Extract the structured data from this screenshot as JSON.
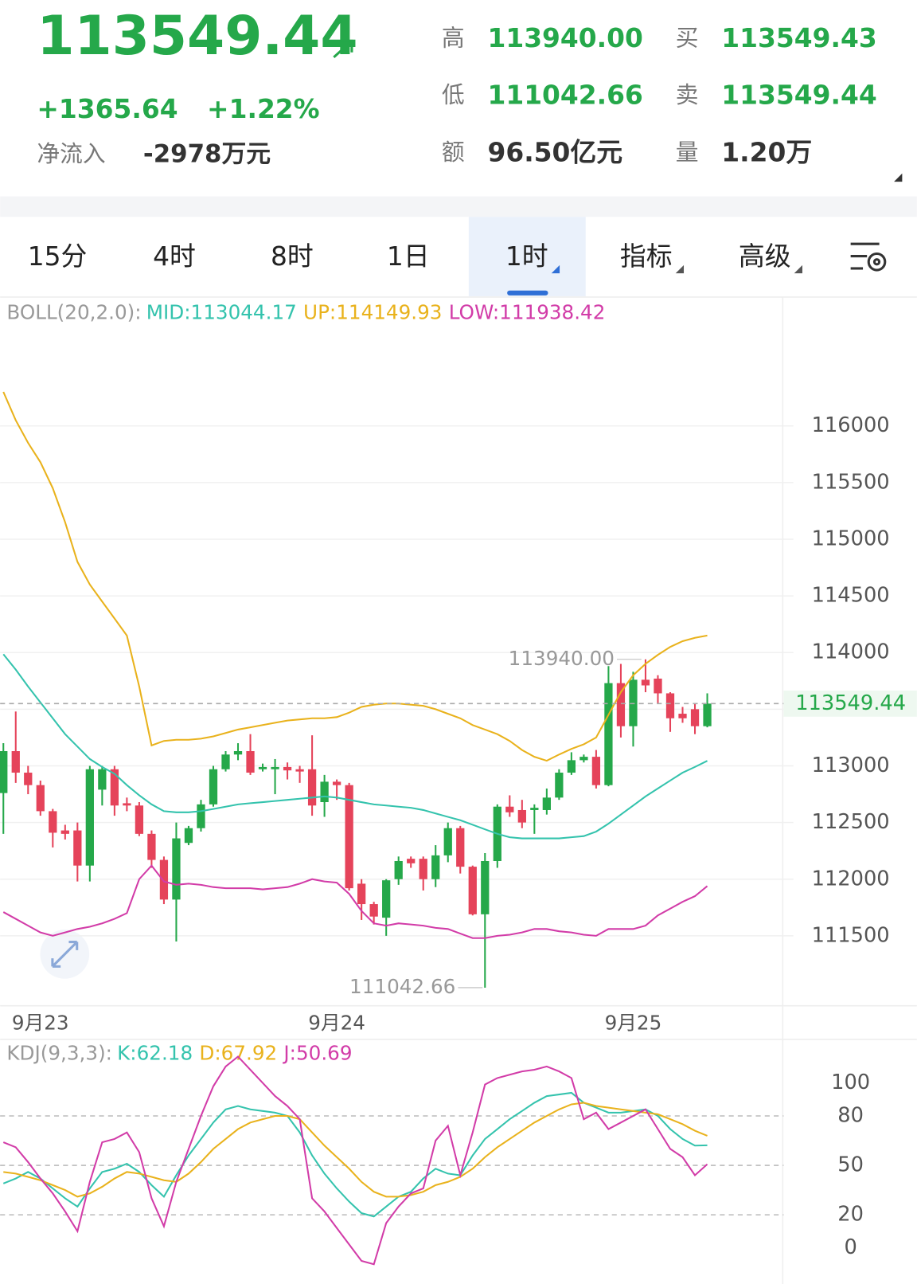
{
  "header": {
    "price": "113549.44",
    "change": "+1365.64",
    "change_pct": "+1.22%",
    "net_inflow_label": "净流入",
    "net_inflow": "-2978万元",
    "stats": [
      {
        "label": "高",
        "value": "113940.00"
      },
      {
        "label": "低",
        "value": "111042.66"
      },
      {
        "label": "额",
        "value": "96.50亿元"
      },
      {
        "label": "买",
        "value": "113549.43"
      },
      {
        "label": "卖",
        "value": "113549.44"
      },
      {
        "label": "量",
        "value": "1.20万"
      }
    ]
  },
  "tabs": {
    "items": [
      "15分",
      "4时",
      "8时",
      "1日",
      "1时",
      "指标",
      "高级"
    ],
    "active": 4
  },
  "chart_data": [
    {
      "type": "candlestick",
      "indicator": "BOLL(20,2.0):",
      "categories": [
        null,
        null,
        null,
        "9月23",
        null,
        null,
        null,
        null,
        null,
        null,
        null,
        null,
        null,
        null,
        null,
        null,
        null,
        null,
        null,
        null,
        null,
        null,
        null,
        null,
        null,
        null,
        null,
        "9月24",
        null,
        null,
        null,
        null,
        null,
        null,
        null,
        null,
        null,
        null,
        null,
        null,
        null,
        null,
        null,
        null,
        null,
        null,
        null,
        null,
        null,
        null,
        null,
        "9月25",
        null,
        null,
        null,
        null,
        null,
        null
      ],
      "up_color": "#25a84a",
      "down_color": "#e5435a",
      "open": [
        112760,
        113130,
        112940,
        112830,
        112600,
        112430,
        112430,
        112120,
        112790,
        112970,
        112670,
        112650,
        112400,
        112170,
        111820,
        112320,
        112450,
        112660,
        112970,
        113100,
        113130,
        112970,
        112970,
        112990,
        112970,
        112970,
        112680,
        112860,
        112830,
        111960,
        111780,
        111660,
        112000,
        112180,
        112180,
        112000,
        112210,
        112450,
        112110,
        111690,
        112160,
        112640,
        112610,
        112610,
        112610,
        112720,
        112940,
        113050,
        113080,
        112830,
        113730,
        113350,
        113760,
        113770,
        113640,
        113460,
        113500,
        113350
      ],
      "high": [
        113200,
        113480,
        113000,
        112870,
        112620,
        112480,
        112500,
        113000,
        113000,
        113000,
        112720,
        112680,
        112430,
        112200,
        112500,
        112470,
        112700,
        113000,
        113130,
        113200,
        113280,
        113020,
        113060,
        113030,
        113000,
        113270,
        112920,
        112880,
        112850,
        112000,
        111800,
        112000,
        112200,
        112200,
        112200,
        112300,
        112500,
        112470,
        112120,
        112230,
        112660,
        112740,
        112700,
        112660,
        112800,
        112970,
        113120,
        113100,
        113140,
        113880,
        113900,
        113830,
        113940,
        113800,
        113650,
        113520,
        113550,
        113640
      ],
      "low": [
        112400,
        112850,
        112750,
        112560,
        112280,
        112350,
        111980,
        111980,
        112650,
        112560,
        112600,
        112380,
        112100,
        111780,
        111450,
        112300,
        112420,
        112640,
        112950,
        113050,
        112920,
        112950,
        112750,
        112880,
        112850,
        112560,
        112550,
        112700,
        111900,
        111640,
        111600,
        111500,
        111950,
        112100,
        111900,
        111930,
        112150,
        112050,
        111680,
        111042.66,
        112100,
        112550,
        112450,
        112400,
        112570,
        112700,
        112920,
        113030,
        112800,
        112820,
        113250,
        113170,
        113650,
        113550,
        113300,
        113380,
        113280,
        113340
      ],
      "close": [
        113130,
        112940,
        112830,
        112600,
        112410,
        112400,
        112120,
        112970,
        112970,
        112650,
        112650,
        112400,
        112170,
        111820,
        112360,
        112450,
        112660,
        112970,
        113100,
        113130,
        112940,
        112990,
        112990,
        112960,
        112950,
        112650,
        112860,
        112830,
        111920,
        111780,
        111670,
        111990,
        112160,
        112140,
        112000,
        112210,
        112450,
        112110,
        111690,
        112160,
        112640,
        112590,
        112500,
        112630,
        112720,
        112940,
        113050,
        113080,
        112830,
        113730,
        113350,
        113760,
        113710,
        113640,
        113420,
        113420,
        113350,
        113549.44
      ],
      "series": [
        {
          "label": "MID:113044.17",
          "color": "#34c3ad",
          "values": [
            113985,
            113850,
            113700,
            113560,
            113420,
            113280,
            113170,
            113060,
            112990,
            112930,
            112830,
            112740,
            112660,
            112600,
            112590,
            112590,
            112600,
            112620,
            112640,
            112660,
            112670,
            112680,
            112690,
            112700,
            112710,
            112720,
            112730,
            112720,
            112700,
            112680,
            112660,
            112650,
            112640,
            112630,
            112610,
            112580,
            112550,
            112520,
            112480,
            112440,
            112400,
            112370,
            112360,
            112360,
            112360,
            112360,
            112370,
            112380,
            112420,
            112490,
            112570,
            112650,
            112730,
            112800,
            112870,
            112940,
            112990,
            113044.17
          ]
        },
        {
          "label": "UP:114149.93",
          "color": "#e9b21c",
          "values": [
            116300,
            116050,
            115850,
            115680,
            115450,
            115150,
            114800,
            114600,
            114450,
            114300,
            114150,
            113700,
            113180,
            113220,
            113230,
            113230,
            113240,
            113260,
            113290,
            113320,
            113340,
            113360,
            113380,
            113400,
            113410,
            113420,
            113420,
            113430,
            113470,
            113520,
            113540,
            113550,
            113550,
            113540,
            113530,
            113500,
            113460,
            113420,
            113360,
            113320,
            113280,
            113220,
            113140,
            113080,
            113045,
            113100,
            113150,
            113190,
            113250,
            113450,
            113650,
            113800,
            113900,
            113980,
            114050,
            114100,
            114130,
            114149.93
          ]
        },
        {
          "label": "LOW:111938.42",
          "color": "#d23ca8",
          "values": [
            111710,
            111650,
            111590,
            111530,
            111500,
            111530,
            111560,
            111580,
            111610,
            111650,
            111700,
            112000,
            112120,
            111980,
            111950,
            111960,
            111950,
            111930,
            111920,
            111920,
            111920,
            111910,
            111920,
            111930,
            111960,
            112000,
            111980,
            111970,
            111870,
            111720,
            111610,
            111590,
            111610,
            111600,
            111590,
            111570,
            111560,
            111520,
            111480,
            111480,
            111500,
            111510,
            111530,
            111560,
            111560,
            111540,
            111530,
            111510,
            111500,
            111560,
            111560,
            111560,
            111590,
            111680,
            111740,
            111800,
            111850,
            111938.42
          ]
        }
      ],
      "ylim": [
        110890,
        116870
      ],
      "yticks": [
        111500,
        112000,
        112500,
        113000,
        113500,
        114000,
        114500,
        115000,
        115500,
        116000
      ],
      "grid": true,
      "last_price_index": 57
    },
    {
      "type": "line",
      "indicator": "KDJ(9,3,3):",
      "series": [
        {
          "label": "K:62.18",
          "color": "#34c3ad",
          "values": [
            39,
            42,
            46,
            42,
            36,
            30,
            25,
            36,
            46,
            48,
            51,
            46,
            38,
            31,
            44,
            56,
            66,
            76,
            84,
            86,
            84,
            83,
            82,
            80,
            70,
            56,
            45,
            36,
            28,
            21,
            19,
            25,
            31,
            34,
            42,
            48,
            45,
            44,
            56,
            66,
            72,
            78,
            83,
            88,
            92,
            93,
            94,
            88,
            85,
            82,
            82,
            83,
            84,
            80,
            72,
            66,
            62,
            62.18
          ]
        },
        {
          "label": "D:67.92",
          "color": "#e9b21c",
          "values": [
            46,
            45,
            43,
            41,
            38,
            35,
            31,
            33,
            37,
            42,
            46,
            45,
            43,
            41,
            40,
            45,
            52,
            60,
            66,
            72,
            76,
            78,
            80,
            80,
            78,
            70,
            62,
            55,
            48,
            40,
            34,
            31,
            31,
            32,
            34,
            38,
            40,
            43,
            48,
            55,
            61,
            66,
            71,
            76,
            80,
            84,
            87,
            88,
            86,
            85,
            84,
            83,
            82,
            81,
            78,
            75,
            71,
            67.92
          ]
        },
        {
          "label": "J:50.69",
          "color": "#d23ca8",
          "values": [
            64,
            61,
            52,
            42,
            33,
            22,
            10,
            40,
            64,
            66,
            70,
            58,
            30,
            13,
            40,
            60,
            80,
            98,
            110,
            116,
            108,
            100,
            92,
            86,
            78,
            30,
            22,
            12,
            2,
            -8,
            -10,
            15,
            25,
            33,
            36,
            65,
            74,
            44,
            70,
            99,
            103,
            105,
            107,
            108,
            110,
            107,
            103,
            78,
            82,
            72,
            76,
            80,
            84,
            72,
            60,
            55,
            44,
            50.69
          ]
        }
      ],
      "ylim": [
        -20,
        124
      ],
      "yticks": [
        0,
        20,
        50,
        80,
        100
      ],
      "grid": true
    }
  ]
}
